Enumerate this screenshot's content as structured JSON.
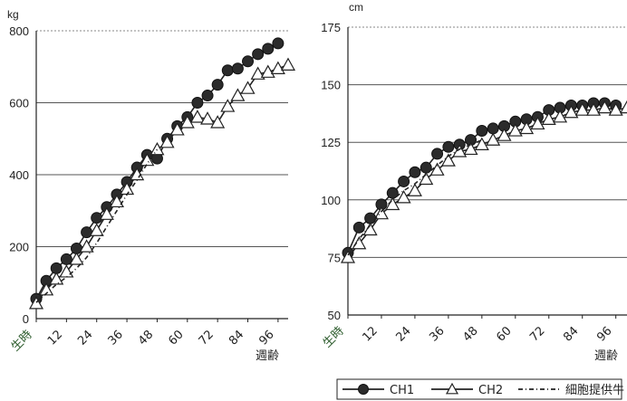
{
  "chart_data": [
    {
      "type": "line",
      "ylabel": "kg",
      "xlabel": "週齢",
      "ylim": [
        0,
        800
      ],
      "yticks": [
        "0",
        "200",
        "400",
        "600",
        "800"
      ],
      "xlim": [
        0,
        100
      ],
      "xticks": [
        {
          "x": 0,
          "label": "生時"
        },
        {
          "x": 12,
          "label": "12"
        },
        {
          "x": 24,
          "label": "24"
        },
        {
          "x": 36,
          "label": "36"
        },
        {
          "x": 48,
          "label": "48"
        },
        {
          "x": 60,
          "label": "60"
        },
        {
          "x": 72,
          "label": "72"
        },
        {
          "x": 84,
          "label": "84"
        },
        {
          "x": 96,
          "label": "96"
        }
      ],
      "grid": true,
      "series": [
        {
          "name": "CH1",
          "marker": "circle",
          "x": [
            0,
            4,
            8,
            12,
            16,
            20,
            24,
            28,
            32,
            36,
            40,
            44,
            48,
            52,
            56,
            60,
            64,
            68,
            72,
            76,
            80,
            84,
            88,
            92,
            96
          ],
          "y": [
            55,
            105,
            140,
            165,
            195,
            240,
            280,
            310,
            345,
            380,
            420,
            455,
            445,
            500,
            535,
            560,
            600,
            620,
            650,
            690,
            695,
            715,
            735,
            750,
            765
          ]
        },
        {
          "name": "CH2",
          "marker": "triangle",
          "x": [
            0,
            4,
            8,
            12,
            16,
            20,
            24,
            28,
            32,
            36,
            40,
            44,
            48,
            52,
            56,
            60,
            64,
            68,
            72,
            76,
            80,
            84,
            88,
            92,
            96,
            100
          ],
          "y": [
            42,
            80,
            110,
            130,
            165,
            200,
            245,
            290,
            325,
            360,
            400,
            440,
            470,
            490,
            525,
            545,
            560,
            555,
            545,
            590,
            620,
            640,
            680,
            685,
            695,
            705
          ]
        },
        {
          "name": "細胞提供牛",
          "marker": "none",
          "dashed": true,
          "x": [
            0,
            4,
            8,
            12,
            16,
            20,
            24,
            28,
            32,
            36,
            40,
            44,
            48
          ],
          "y": [
            45,
            70,
            95,
            115,
            140,
            170,
            210,
            255,
            300,
            345,
            385,
            430,
            470
          ]
        }
      ]
    },
    {
      "type": "line",
      "ylabel": "cm",
      "xlabel": "週齢",
      "ylim": [
        50,
        175
      ],
      "yticks": [
        "50",
        "75",
        "100",
        "125",
        "150",
        "175"
      ],
      "xlim": [
        0,
        100
      ],
      "xticks": [
        {
          "x": 0,
          "label": "生時"
        },
        {
          "x": 12,
          "label": "12"
        },
        {
          "x": 24,
          "label": "24"
        },
        {
          "x": 36,
          "label": "36"
        },
        {
          "x": 48,
          "label": "48"
        },
        {
          "x": 60,
          "label": "60"
        },
        {
          "x": 72,
          "label": "72"
        },
        {
          "x": 84,
          "label": "84"
        },
        {
          "x": 96,
          "label": "96"
        }
      ],
      "grid": true,
      "series": [
        {
          "name": "CH1",
          "marker": "circle",
          "x": [
            0,
            4,
            8,
            12,
            16,
            20,
            24,
            28,
            32,
            36,
            40,
            44,
            48,
            52,
            56,
            60,
            64,
            68,
            72,
            76,
            80,
            84,
            88,
            92,
            96
          ],
          "y": [
            77,
            88,
            92,
            98,
            103,
            108,
            112,
            114,
            120,
            123,
            124,
            126,
            130,
            131,
            132,
            134,
            135,
            136,
            139,
            140,
            141,
            141,
            142,
            142,
            141
          ]
        },
        {
          "name": "CH2",
          "marker": "triangle",
          "x": [
            0,
            4,
            8,
            12,
            16,
            20,
            24,
            28,
            32,
            36,
            40,
            44,
            48,
            52,
            56,
            60,
            64,
            68,
            72,
            76,
            80,
            84,
            88,
            92,
            96,
            100
          ],
          "y": [
            75,
            81,
            87,
            94,
            98,
            101,
            104,
            109,
            113,
            117,
            121,
            122,
            124,
            126,
            128,
            130,
            131,
            133,
            135,
            136,
            138,
            139,
            139,
            140,
            139,
            140
          ]
        },
        {
          "name": "細胞提供牛",
          "marker": "none",
          "dashed": true,
          "x": [
            0,
            4,
            8,
            12,
            16,
            20,
            24,
            28,
            32,
            36,
            40,
            44,
            48
          ],
          "y": [
            76,
            83,
            89,
            95,
            100,
            104,
            107,
            111,
            115,
            119,
            122,
            124,
            126
          ]
        }
      ]
    }
  ],
  "legend": {
    "placement": "bottom-right",
    "items": [
      "CH1",
      "CH2",
      "細胞提供牛"
    ]
  }
}
